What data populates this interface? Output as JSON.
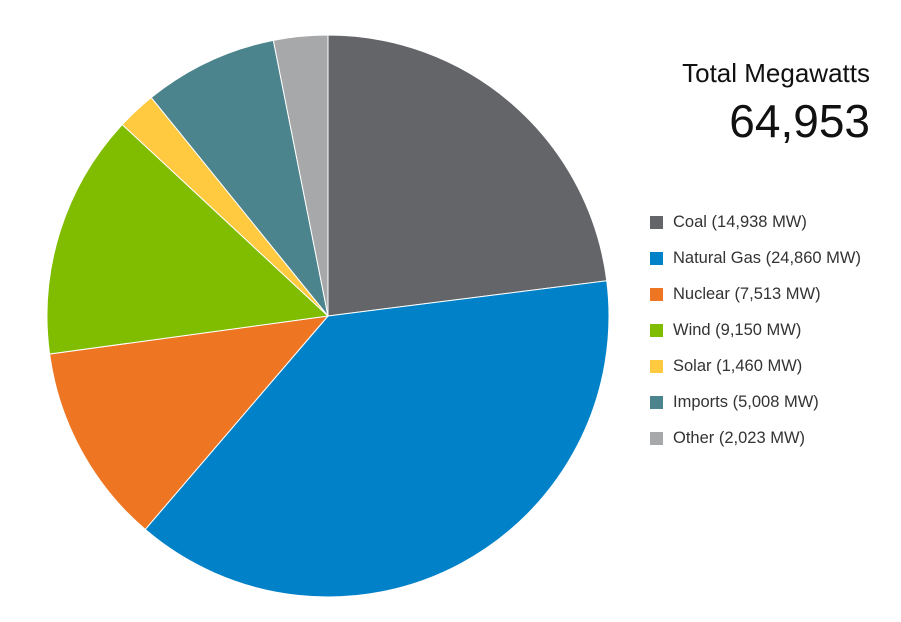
{
  "summary": {
    "label": "Total Megawatts",
    "value": "64,953"
  },
  "chart_data": {
    "type": "pie",
    "unit": "MW",
    "start_angle_deg": 0,
    "direction": "clockwise",
    "slices": [
      {
        "name": "Coal",
        "value": 14938,
        "label": "Coal (14,938 MW)",
        "color": "#646569"
      },
      {
        "name": "Natural Gas",
        "value": 24860,
        "label": "Natural Gas (24,860 MW)",
        "color": "#0081C8"
      },
      {
        "name": "Nuclear",
        "value": 7513,
        "label": "Nuclear (7,513 MW)",
        "color": "#EE7623"
      },
      {
        "name": "Wind",
        "value": 9150,
        "label": "Wind (9,150 MW)",
        "color": "#80BC00"
      },
      {
        "name": "Solar",
        "value": 1460,
        "label": "Solar (1,460 MW)",
        "color": "#FFC940"
      },
      {
        "name": "Imports",
        "value": 5008,
        "label": "Imports (5,008 MW)",
        "color": "#4B848C"
      },
      {
        "name": "Other",
        "value": 2023,
        "label": "Other (2,023 MW)",
        "color": "#A7A8AA"
      }
    ],
    "legend_position": "right"
  }
}
